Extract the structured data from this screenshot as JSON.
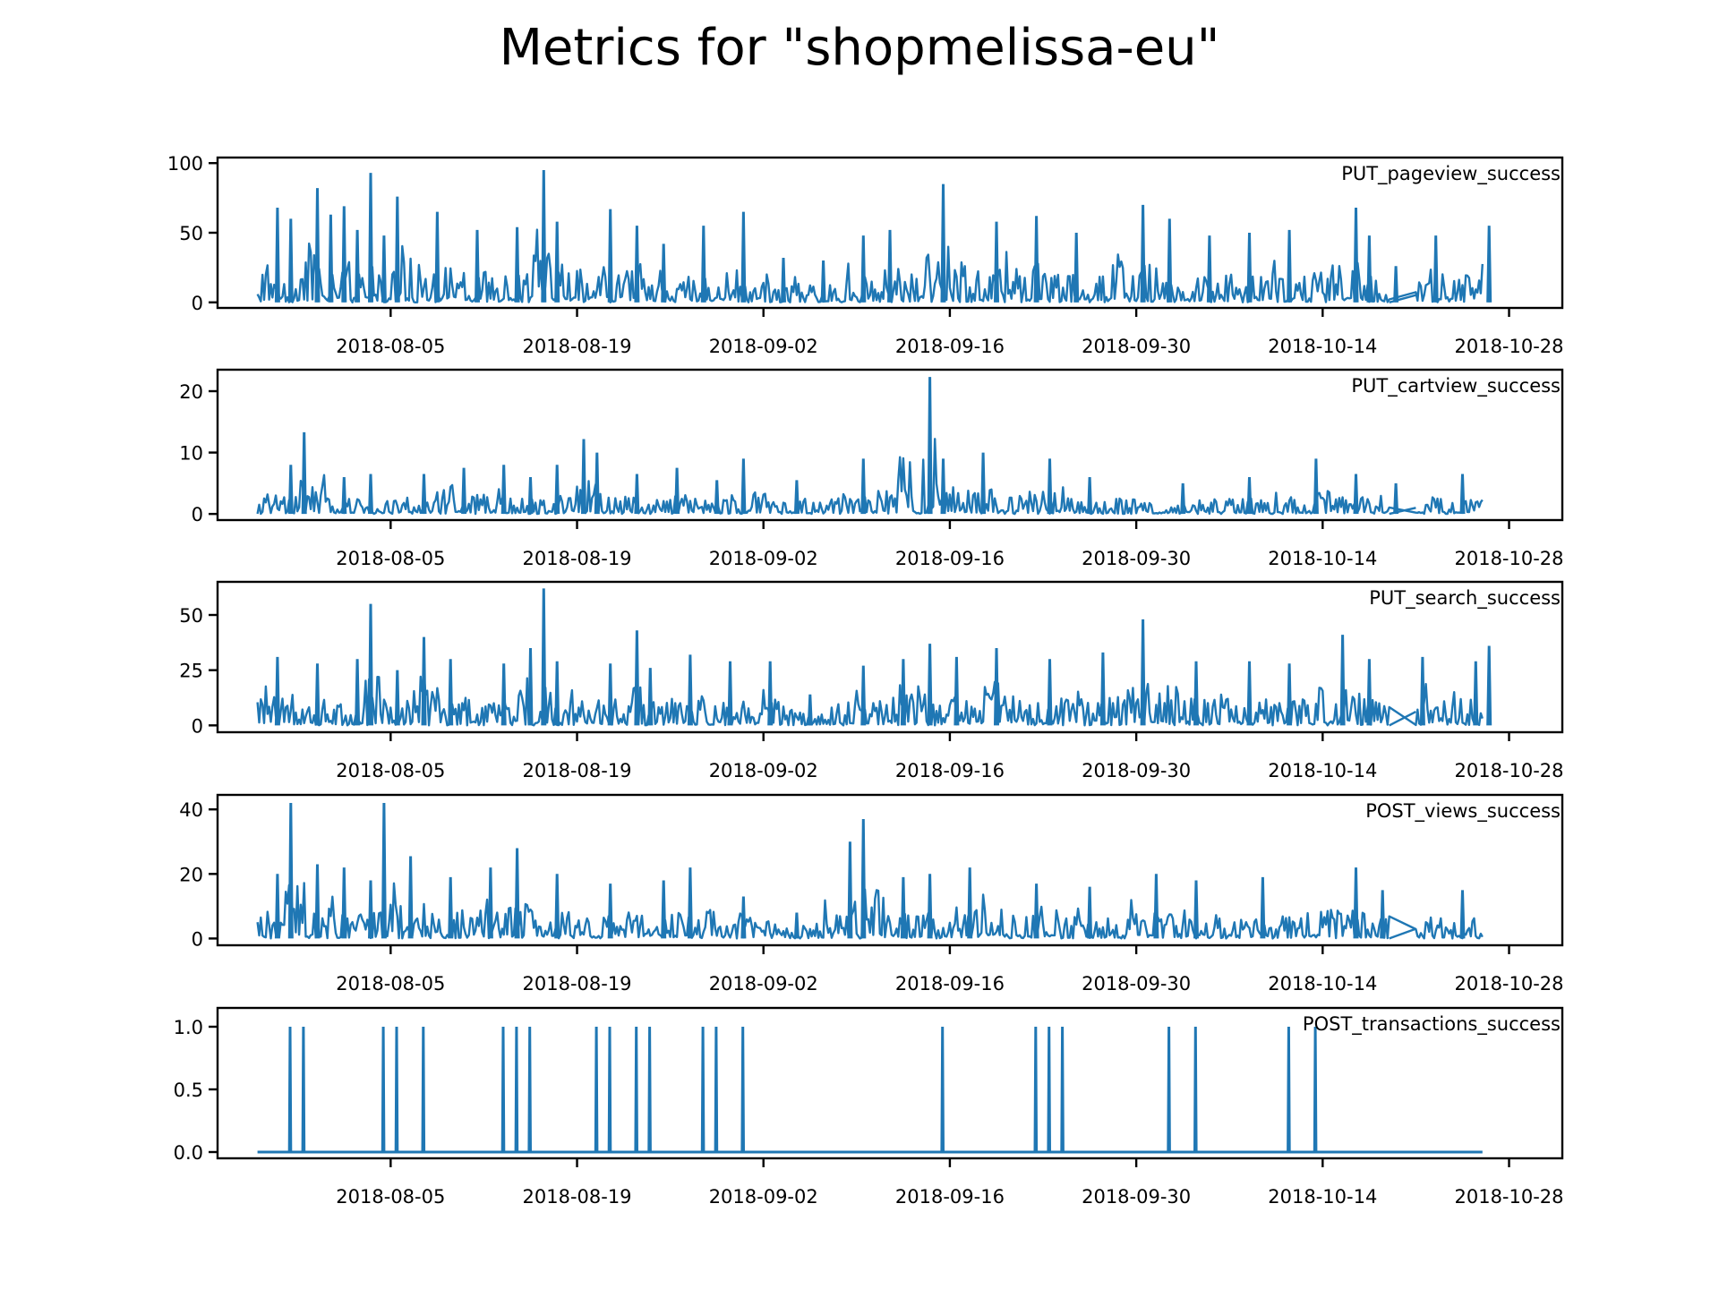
{
  "figure": {
    "title": "Metrics for \"shopmelissa-eu\""
  },
  "chart_data": [
    {
      "type": "line",
      "series": [
        {
          "name": "PUT_pageview_success",
          "color": "#1f77b4",
          "peaks": [
            {
              "x": "2018-07-27",
              "y": 68
            },
            {
              "x": "2018-07-28",
              "y": 60
            },
            {
              "x": "2018-07-30",
              "y": 82
            },
            {
              "x": "2018-07-31",
              "y": 63
            },
            {
              "x": "2018-08-01",
              "y": 69
            },
            {
              "x": "2018-08-02",
              "y": 52
            },
            {
              "x": "2018-08-03",
              "y": 93
            },
            {
              "x": "2018-08-04",
              "y": 48
            },
            {
              "x": "2018-08-05",
              "y": 76
            },
            {
              "x": "2018-08-08",
              "y": 65
            },
            {
              "x": "2018-08-11",
              "y": 52
            },
            {
              "x": "2018-08-14",
              "y": 54
            },
            {
              "x": "2018-08-16",
              "y": 95
            },
            {
              "x": "2018-08-17",
              "y": 58
            },
            {
              "x": "2018-08-21",
              "y": 67
            },
            {
              "x": "2018-08-23",
              "y": 55
            },
            {
              "x": "2018-08-25",
              "y": 42
            },
            {
              "x": "2018-08-28",
              "y": 55
            },
            {
              "x": "2018-08-31",
              "y": 65
            },
            {
              "x": "2018-09-03",
              "y": 32
            },
            {
              "x": "2018-09-06",
              "y": 30
            },
            {
              "x": "2018-09-09",
              "y": 48
            },
            {
              "x": "2018-09-11",
              "y": 52
            },
            {
              "x": "2018-09-15",
              "y": 85
            },
            {
              "x": "2018-09-19",
              "y": 58
            },
            {
              "x": "2018-09-22",
              "y": 62
            },
            {
              "x": "2018-09-25",
              "y": 50
            },
            {
              "x": "2018-09-30",
              "y": 70
            },
            {
              "x": "2018-10-02",
              "y": 60
            },
            {
              "x": "2018-10-05",
              "y": 48
            },
            {
              "x": "2018-10-08",
              "y": 50
            },
            {
              "x": "2018-10-11",
              "y": 52
            },
            {
              "x": "2018-10-16",
              "y": 68
            },
            {
              "x": "2018-10-17",
              "y": 48
            },
            {
              "x": "2018-10-19",
              "y": 26
            },
            {
              "x": "2018-10-22",
              "y": 48
            },
            {
              "x": "2018-10-26",
              "y": 55
            }
          ]
        }
      ],
      "ylim": [
        -4,
        104
      ],
      "yticks": [
        0,
        50,
        100
      ],
      "legend_loc": "upper right",
      "grid": false
    },
    {
      "type": "line",
      "series": [
        {
          "name": "PUT_cartview_success",
          "color": "#1f77b4",
          "peaks": [
            {
              "x": "2018-07-28",
              "y": 8
            },
            {
              "x": "2018-07-29",
              "y": 13.3
            },
            {
              "x": "2018-08-01",
              "y": 6
            },
            {
              "x": "2018-08-03",
              "y": 6.5
            },
            {
              "x": "2018-08-07",
              "y": 6.5
            },
            {
              "x": "2018-08-10",
              "y": 7.5
            },
            {
              "x": "2018-08-13",
              "y": 8
            },
            {
              "x": "2018-08-15",
              "y": 6
            },
            {
              "x": "2018-08-17",
              "y": 8
            },
            {
              "x": "2018-08-19",
              "y": 12.2
            },
            {
              "x": "2018-08-20",
              "y": 10
            },
            {
              "x": "2018-08-23",
              "y": 6.5
            },
            {
              "x": "2018-08-26",
              "y": 7.5
            },
            {
              "x": "2018-08-29",
              "y": 5.5
            },
            {
              "x": "2018-08-31",
              "y": 9
            },
            {
              "x": "2018-09-04",
              "y": 5.5
            },
            {
              "x": "2018-09-09",
              "y": 9
            },
            {
              "x": "2018-09-14",
              "y": 22.3
            },
            {
              "x": "2018-09-15",
              "y": 9
            },
            {
              "x": "2018-09-18",
              "y": 10
            },
            {
              "x": "2018-09-23",
              "y": 9
            },
            {
              "x": "2018-09-26",
              "y": 6
            },
            {
              "x": "2018-10-03",
              "y": 5
            },
            {
              "x": "2018-10-08",
              "y": 6
            },
            {
              "x": "2018-10-13",
              "y": 9
            },
            {
              "x": "2018-10-16",
              "y": 6.5
            },
            {
              "x": "2018-10-19",
              "y": 5
            },
            {
              "x": "2018-10-24",
              "y": 6.5
            }
          ]
        }
      ],
      "ylim": [
        -1,
        23.5
      ],
      "yticks": [
        0,
        10,
        20
      ],
      "legend_loc": "upper right",
      "grid": false
    },
    {
      "type": "line",
      "series": [
        {
          "name": "PUT_search_success",
          "color": "#1f77b4",
          "peaks": [
            {
              "x": "2018-07-27",
              "y": 31
            },
            {
              "x": "2018-07-30",
              "y": 28
            },
            {
              "x": "2018-08-02",
              "y": 30
            },
            {
              "x": "2018-08-03",
              "y": 55
            },
            {
              "x": "2018-08-05",
              "y": 25
            },
            {
              "x": "2018-08-07",
              "y": 40
            },
            {
              "x": "2018-08-09",
              "y": 30
            },
            {
              "x": "2018-08-13",
              "y": 28
            },
            {
              "x": "2018-08-15",
              "y": 35
            },
            {
              "x": "2018-08-16",
              "y": 62
            },
            {
              "x": "2018-08-17",
              "y": 29
            },
            {
              "x": "2018-08-21",
              "y": 28
            },
            {
              "x": "2018-08-23",
              "y": 43
            },
            {
              "x": "2018-08-24",
              "y": 26
            },
            {
              "x": "2018-08-27",
              "y": 32
            },
            {
              "x": "2018-08-30",
              "y": 29
            },
            {
              "x": "2018-09-02",
              "y": 29
            },
            {
              "x": "2018-09-05",
              "y": 14
            },
            {
              "x": "2018-09-09",
              "y": 27
            },
            {
              "x": "2018-09-12",
              "y": 30
            },
            {
              "x": "2018-09-14",
              "y": 37
            },
            {
              "x": "2018-09-16",
              "y": 31
            },
            {
              "x": "2018-09-19",
              "y": 35
            },
            {
              "x": "2018-09-23",
              "y": 30
            },
            {
              "x": "2018-09-27",
              "y": 33
            },
            {
              "x": "2018-09-30",
              "y": 48
            },
            {
              "x": "2018-10-04",
              "y": 29
            },
            {
              "x": "2018-10-08",
              "y": 29
            },
            {
              "x": "2018-10-11",
              "y": 28
            },
            {
              "x": "2018-10-15",
              "y": 41
            },
            {
              "x": "2018-10-17",
              "y": 30
            },
            {
              "x": "2018-10-21",
              "y": 31
            },
            {
              "x": "2018-10-25",
              "y": 29
            },
            {
              "x": "2018-10-26",
              "y": 36
            }
          ]
        }
      ],
      "ylim": [
        -3.1,
        65
      ],
      "yticks": [
        0,
        25,
        50
      ],
      "legend_loc": "upper right",
      "grid": false
    },
    {
      "type": "line",
      "series": [
        {
          "name": "POST_views_success",
          "color": "#1f77b4",
          "peaks": [
            {
              "x": "2018-07-27",
              "y": 20
            },
            {
              "x": "2018-07-28",
              "y": 42
            },
            {
              "x": "2018-07-30",
              "y": 23
            },
            {
              "x": "2018-08-01",
              "y": 22
            },
            {
              "x": "2018-08-03",
              "y": 18
            },
            {
              "x": "2018-08-04",
              "y": 42
            },
            {
              "x": "2018-08-06",
              "y": 25.5
            },
            {
              "x": "2018-08-09",
              "y": 19
            },
            {
              "x": "2018-08-12",
              "y": 22
            },
            {
              "x": "2018-08-14",
              "y": 28
            },
            {
              "x": "2018-08-17",
              "y": 20
            },
            {
              "x": "2018-08-21",
              "y": 17
            },
            {
              "x": "2018-08-25",
              "y": 18
            },
            {
              "x": "2018-08-27",
              "y": 22
            },
            {
              "x": "2018-08-31",
              "y": 13
            },
            {
              "x": "2018-09-04",
              "y": 8
            },
            {
              "x": "2018-09-08",
              "y": 30
            },
            {
              "x": "2018-09-09",
              "y": 37
            },
            {
              "x": "2018-09-12",
              "y": 19
            },
            {
              "x": "2018-09-14",
              "y": 20
            },
            {
              "x": "2018-09-17",
              "y": 22
            },
            {
              "x": "2018-09-22",
              "y": 17
            },
            {
              "x": "2018-09-26",
              "y": 16
            },
            {
              "x": "2018-10-01",
              "y": 20
            },
            {
              "x": "2018-10-04",
              "y": 18
            },
            {
              "x": "2018-10-09",
              "y": 19
            },
            {
              "x": "2018-10-16",
              "y": 22
            },
            {
              "x": "2018-10-18",
              "y": 15
            },
            {
              "x": "2018-10-24",
              "y": 15
            }
          ]
        }
      ],
      "ylim": [
        -2.1,
        44.5
      ],
      "yticks": [
        0,
        20,
        40
      ],
      "legend_loc": "upper right",
      "grid": false
    },
    {
      "type": "line",
      "series": [
        {
          "name": "POST_transactions_success",
          "color": "#1f77b4",
          "spike_dates": [
            "2018-07-28",
            "2018-07-29",
            "2018-08-04",
            "2018-08-05",
            "2018-08-07",
            "2018-08-13",
            "2018-08-14",
            "2018-08-14",
            "2018-08-15",
            "2018-08-20",
            "2018-08-21",
            "2018-08-23",
            "2018-08-24",
            "2018-08-28",
            "2018-08-28",
            "2018-08-29",
            "2018-08-29",
            "2018-08-31",
            "2018-09-15",
            "2018-09-22",
            "2018-09-23",
            "2018-09-24",
            "2018-10-02",
            "2018-10-04",
            "2018-10-11",
            "2018-10-13"
          ],
          "spike_value": 1.0,
          "base_value": 0.0
        }
      ],
      "ylim": [
        -0.05,
        1.15
      ],
      "yticks": [
        0.0,
        0.5,
        1.0
      ],
      "legend_loc": "upper right",
      "grid": false
    }
  ],
  "x_axis": {
    "range": [
      "2018-07-23",
      "2018-11-01"
    ],
    "data_range": [
      "2018-07-26",
      "2018-10-26"
    ],
    "gap_range": [
      "2018-10-19",
      "2018-10-21"
    ],
    "ticks": [
      "2018-08-05",
      "2018-08-19",
      "2018-09-02",
      "2018-09-16",
      "2018-09-30",
      "2018-10-14",
      "2018-10-28"
    ]
  }
}
